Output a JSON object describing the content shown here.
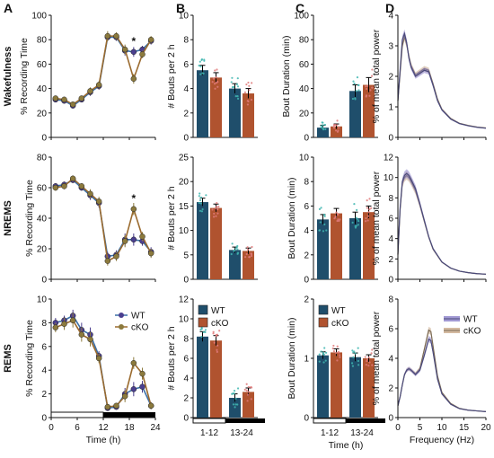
{
  "panel_letters": [
    "A",
    "B",
    "C",
    "D"
  ],
  "colors": {
    "wt": "#4b3f8f",
    "cko": "#8c7a3d",
    "wt_bar": "#1f4e6b",
    "cko_bar": "#b0532f",
    "wt_dots": "#3fb6b0",
    "cko_dots": "#e07a7a",
    "axis": "#111111",
    "spectrum_line": "#555555",
    "spectrum_band": "#c9a98a"
  },
  "row_labels": [
    "Wakefulness",
    "NREMS",
    "REMS"
  ],
  "legend": {
    "wt": "WT",
    "cko": "cKO"
  },
  "significance_marker": "*",
  "chart_data": [
    {
      "id": "A1",
      "type": "line",
      "ylabel": "% Recording Time",
      "ylim": [
        0,
        100
      ],
      "yticks": [
        0,
        20,
        40,
        60,
        80,
        100
      ],
      "xlim": [
        0,
        24
      ],
      "xticks": [
        0,
        6,
        12,
        18,
        24
      ],
      "xlabel": "",
      "x": [
        1,
        3,
        5,
        7,
        9,
        11,
        13,
        15,
        17,
        19,
        21,
        23
      ],
      "series": [
        {
          "name": "WT",
          "values": [
            31,
            30,
            26,
            31,
            37,
            42,
            82,
            82,
            71,
            70,
            72,
            79
          ],
          "err": [
            2,
            2,
            2,
            2,
            3,
            3,
            3,
            3,
            4,
            4,
            3,
            3
          ]
        },
        {
          "name": "cKO",
          "values": [
            32,
            31,
            27,
            32,
            38,
            43,
            83,
            83,
            72,
            48,
            68,
            80
          ],
          "err": [
            2,
            2,
            2,
            2,
            3,
            3,
            4,
            3,
            4,
            4,
            3,
            3
          ]
        }
      ],
      "significance_x": 19
    },
    {
      "id": "A2",
      "type": "line",
      "ylabel": "% Recording Time",
      "ylim": [
        0,
        80
      ],
      "yticks": [
        0,
        20,
        40,
        60,
        80
      ],
      "xlim": [
        0,
        24
      ],
      "xticks": [
        0,
        6,
        12,
        18,
        24
      ],
      "xlabel": "",
      "x": [
        1,
        3,
        5,
        7,
        9,
        11,
        13,
        15,
        17,
        19,
        21,
        23
      ],
      "series": [
        {
          "name": "WT",
          "values": [
            61,
            62,
            65,
            60,
            55,
            50,
            15,
            16,
            26,
            26,
            25,
            18
          ],
          "err": [
            2,
            2,
            2,
            2,
            3,
            3,
            3,
            3,
            4,
            4,
            3,
            3
          ]
        },
        {
          "name": "cKO",
          "values": [
            60,
            61,
            66,
            61,
            56,
            51,
            12,
            15,
            25,
            46,
            28,
            17
          ],
          "err": [
            2,
            2,
            2,
            2,
            3,
            3,
            3,
            3,
            4,
            4,
            3,
            3
          ]
        }
      ],
      "significance_x": 19
    },
    {
      "id": "A3",
      "type": "line",
      "ylabel": "% Recording Time",
      "ylim": [
        0,
        10
      ],
      "yticks": [
        0,
        2,
        4,
        6,
        8,
        10
      ],
      "xlim": [
        0,
        24
      ],
      "xticks": [
        0,
        6,
        12,
        18,
        24
      ],
      "xlabel": "Time (h)",
      "x": [
        1,
        3,
        5,
        7,
        9,
        11,
        13,
        15,
        17,
        19,
        21,
        23
      ],
      "series": [
        {
          "name": "WT",
          "values": [
            8.0,
            8.2,
            8.6,
            7.4,
            7.0,
            5.2,
            0.8,
            0.9,
            2.0,
            2.4,
            2.6,
            1.0
          ],
          "err": [
            0.4,
            0.4,
            0.5,
            0.6,
            0.6,
            0.4,
            0.2,
            0.2,
            0.5,
            0.6,
            0.5,
            0.3
          ]
        },
        {
          "name": "cKO",
          "values": [
            7.6,
            7.9,
            8.2,
            7.0,
            6.6,
            5.0,
            0.9,
            1.0,
            1.8,
            4.6,
            3.7,
            1.0
          ],
          "err": [
            0.4,
            0.5,
            0.6,
            0.6,
            0.6,
            0.4,
            0.2,
            0.2,
            0.5,
            0.5,
            0.5,
            0.3
          ]
        }
      ]
    },
    {
      "id": "B1",
      "type": "bar",
      "ylabel": "# Bouts per 2 h",
      "ylim": [
        0,
        10
      ],
      "yticks": [
        0,
        2,
        4,
        6,
        8,
        10
      ],
      "categories": [
        "1-12",
        "13-24"
      ],
      "series": [
        {
          "name": "WT",
          "values": [
            5.5,
            4.0
          ],
          "err": [
            0.4,
            0.4
          ]
        },
        {
          "name": "cKO",
          "values": [
            4.9,
            3.6
          ],
          "err": [
            0.4,
            0.4
          ]
        }
      ]
    },
    {
      "id": "B2",
      "type": "bar",
      "ylabel": "# Bouts per 2 h",
      "ylim": [
        0,
        25
      ],
      "yticks": [
        0,
        5,
        10,
        15,
        20,
        25
      ],
      "categories": [
        "1-12",
        "13-24"
      ],
      "series": [
        {
          "name": "WT",
          "values": [
            15.8,
            6.0
          ],
          "err": [
            0.8,
            0.6
          ]
        },
        {
          "name": "cKO",
          "values": [
            14.6,
            5.8
          ],
          "err": [
            0.8,
            0.6
          ]
        }
      ]
    },
    {
      "id": "B3",
      "type": "bar",
      "ylabel": "# Bouts per 2 h",
      "ylim": [
        0,
        12
      ],
      "yticks": [
        0,
        2,
        4,
        6,
        8,
        10,
        12
      ],
      "categories": [
        "1-12",
        "13-24"
      ],
      "series": [
        {
          "name": "WT",
          "values": [
            8.2,
            2.0
          ],
          "err": [
            0.5,
            0.4
          ]
        },
        {
          "name": "cKO",
          "values": [
            7.8,
            2.6
          ],
          "err": [
            0.5,
            0.4
          ]
        }
      ]
    },
    {
      "id": "C1",
      "type": "bar",
      "ylabel": "Bout Duration (min)",
      "ylim": [
        0,
        100
      ],
      "yticks": [
        0,
        20,
        40,
        60,
        80,
        100
      ],
      "categories": [
        "1-12",
        "13-24"
      ],
      "series": [
        {
          "name": "WT",
          "values": [
            8,
            38
          ],
          "err": [
            2,
            5
          ]
        },
        {
          "name": "cKO",
          "values": [
            9,
            43
          ],
          "err": [
            2,
            6
          ]
        }
      ]
    },
    {
      "id": "C2",
      "type": "bar",
      "ylabel": "Bout Duration (min)",
      "ylim": [
        0,
        10
      ],
      "yticks": [
        0,
        2,
        4,
        6,
        8,
        10
      ],
      "categories": [
        "1-12",
        "13-24"
      ],
      "series": [
        {
          "name": "WT",
          "values": [
            4.9,
            5.0
          ],
          "err": [
            0.4,
            0.5
          ]
        },
        {
          "name": "cKO",
          "values": [
            5.4,
            5.5
          ],
          "err": [
            0.4,
            0.5
          ]
        }
      ]
    },
    {
      "id": "C3",
      "type": "bar",
      "ylabel": "Bout Duration (min)",
      "ylim": [
        0,
        2
      ],
      "yticks": [
        0,
        1,
        2
      ],
      "xlabel": "Time (h)",
      "categories": [
        "1-12",
        "13-24"
      ],
      "series": [
        {
          "name": "WT",
          "values": [
            1.05,
            1.02
          ],
          "err": [
            0.06,
            0.07
          ]
        },
        {
          "name": "cKO",
          "values": [
            1.1,
            1.0
          ],
          "err": [
            0.06,
            0.06
          ]
        }
      ]
    },
    {
      "id": "D1",
      "type": "line",
      "ylabel": "% of mean total power",
      "ylim": [
        0,
        4
      ],
      "yticks": [
        0,
        1,
        2,
        3,
        4
      ],
      "xlim": [
        0,
        20
      ],
      "xticks": [
        0,
        5,
        10,
        15,
        20
      ],
      "xlabel": "",
      "x": [
        0,
        0.5,
        1,
        1.5,
        2,
        2.5,
        3,
        4,
        5,
        6,
        7,
        8,
        9,
        10,
        12,
        14,
        16,
        18,
        20
      ],
      "series": [
        {
          "name": "WT",
          "values": [
            1.2,
            2.2,
            3.2,
            3.4,
            3.1,
            2.6,
            2.3,
            2.0,
            2.1,
            2.2,
            2.15,
            1.7,
            1.2,
            0.9,
            0.6,
            0.45,
            0.38,
            0.33,
            0.3
          ]
        },
        {
          "name": "cKO",
          "values": [
            1.2,
            2.1,
            3.0,
            3.3,
            3.05,
            2.65,
            2.35,
            2.05,
            2.15,
            2.25,
            2.2,
            1.75,
            1.25,
            0.92,
            0.62,
            0.46,
            0.39,
            0.34,
            0.31
          ]
        }
      ]
    },
    {
      "id": "D2",
      "type": "line",
      "ylabel": "% of mean total power",
      "ylim": [
        0,
        12
      ],
      "yticks": [
        0,
        2,
        4,
        6,
        8,
        10,
        12
      ],
      "xlim": [
        0,
        20
      ],
      "xticks": [
        0,
        5,
        10,
        15,
        20
      ],
      "xlabel": "",
      "x": [
        0,
        0.5,
        1,
        1.5,
        2,
        2.5,
        3,
        4,
        5,
        6,
        7,
        8,
        10,
        12,
        14,
        16,
        18,
        20
      ],
      "series": [
        {
          "name": "WT",
          "values": [
            2.5,
            7.0,
            9.6,
            10.2,
            10.4,
            10.2,
            9.8,
            8.9,
            7.4,
            5.8,
            4.2,
            3.0,
            1.7,
            1.1,
            0.8,
            0.65,
            0.55,
            0.5
          ]
        },
        {
          "name": "cKO",
          "values": [
            2.4,
            6.8,
            9.4,
            10.0,
            10.2,
            10.0,
            9.6,
            8.7,
            7.3,
            5.7,
            4.15,
            2.95,
            1.68,
            1.1,
            0.8,
            0.65,
            0.55,
            0.5
          ]
        }
      ]
    },
    {
      "id": "D3",
      "type": "line",
      "ylabel": "% of mean total power",
      "ylim": [
        0,
        8
      ],
      "yticks": [
        0,
        2,
        4,
        6,
        8
      ],
      "xlim": [
        0,
        20
      ],
      "xticks": [
        0,
        5,
        10,
        15,
        20
      ],
      "xlabel": "Frequency (Hz)",
      "x": [
        0,
        0.5,
        1,
        1.5,
        2,
        2.5,
        3,
        4,
        5,
        6,
        7,
        7.5,
        8,
        9,
        10,
        12,
        14,
        16,
        18,
        20
      ],
      "series": [
        {
          "name": "WT",
          "values": [
            0.8,
            1.4,
            2.2,
            2.9,
            3.2,
            3.3,
            3.2,
            2.9,
            3.2,
            4.2,
            5.3,
            5.2,
            4.4,
            2.6,
            1.6,
            0.9,
            0.6,
            0.5,
            0.45,
            0.4
          ]
        },
        {
          "name": "cKO",
          "values": [
            0.8,
            1.4,
            2.2,
            2.9,
            3.2,
            3.3,
            3.2,
            2.95,
            3.3,
            4.6,
            5.9,
            5.8,
            4.8,
            2.8,
            1.7,
            0.95,
            0.62,
            0.5,
            0.45,
            0.4
          ]
        }
      ]
    }
  ]
}
